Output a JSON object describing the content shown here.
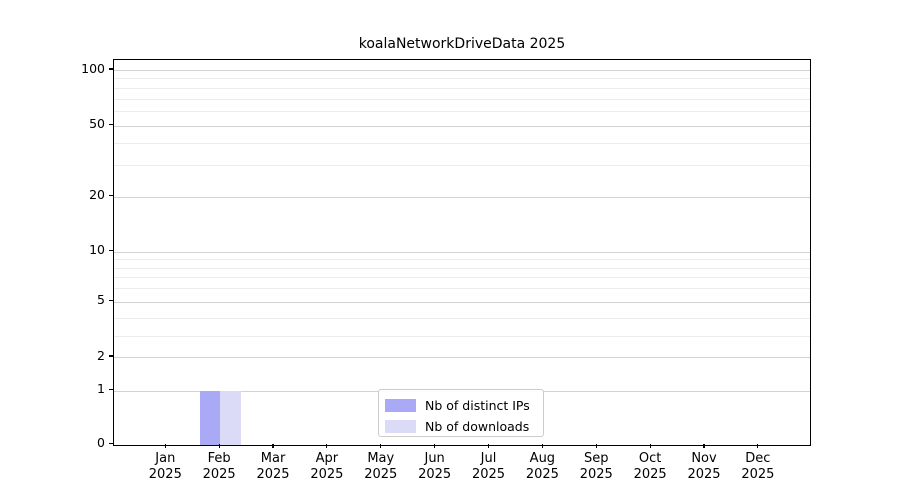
{
  "figure": {
    "background": "#ffffff"
  },
  "chart_data": {
    "type": "bar",
    "title": "koalaNetworkDriveData 2025",
    "categories": [
      "Jan",
      "Feb",
      "Mar",
      "Apr",
      "May",
      "Jun",
      "Jul",
      "Aug",
      "Sep",
      "Oct",
      "Nov",
      "Dec"
    ],
    "x_tick_second_line": "2025",
    "series": [
      {
        "name": "Nb of distinct IPs",
        "color": "#a9a9f5",
        "values": [
          0,
          1,
          0,
          0,
          0,
          0,
          0,
          0,
          0,
          0,
          0,
          0
        ]
      },
      {
        "name": "Nb of downloads",
        "color": "#dbdbf8",
        "values": [
          0,
          1,
          0,
          0,
          0,
          0,
          0,
          0,
          0,
          0,
          0,
          0
        ]
      }
    ],
    "xlabel": "",
    "ylabel": "",
    "yscale": "symlog",
    "yticks": [
      0,
      1,
      2,
      5,
      10,
      20,
      50,
      100
    ],
    "ylim": [
      0,
      110
    ],
    "grid": "horizontal-major-and-minor",
    "legend_position": "lower-center-inside"
  },
  "colors": {
    "grid_major": "#d2d2d2",
    "grid_minor": "#ececec",
    "axis": "#000000",
    "text": "#000000"
  }
}
